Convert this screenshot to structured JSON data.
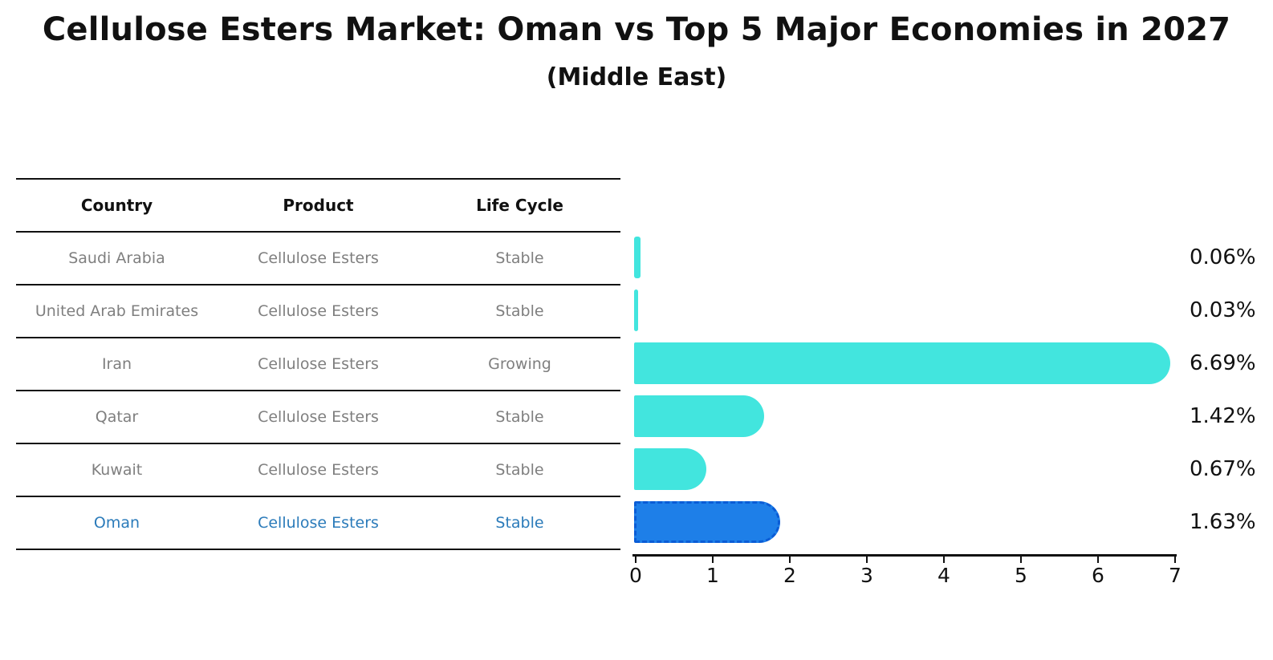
{
  "title": "Cellulose Esters Market: Oman vs Top 5 Major Economies in 2027",
  "subtitle": "(Middle East)",
  "table": {
    "headers": [
      "Country",
      "Product",
      "Life Cycle"
    ],
    "rows": [
      {
        "country": "Saudi Arabia",
        "product": "Cellulose Esters",
        "life_cycle": "Stable",
        "highlight": false
      },
      {
        "country": "United Arab Emirates",
        "product": "Cellulose Esters",
        "life_cycle": "Stable",
        "highlight": false
      },
      {
        "country": "Iran",
        "product": "Cellulose Esters",
        "life_cycle": "Growing",
        "highlight": false
      },
      {
        "country": "Qatar",
        "product": "Cellulose Esters",
        "life_cycle": "Stable",
        "highlight": false
      },
      {
        "country": "Kuwait",
        "product": "Cellulose Esters",
        "life_cycle": "Stable",
        "highlight": false
      },
      {
        "country": "Oman",
        "product": "Cellulose Esters",
        "life_cycle": "Stable",
        "highlight": true
      }
    ]
  },
  "chart_data": {
    "type": "bar",
    "orientation": "horizontal",
    "title": "Cellulose Esters Market: Oman vs Top 5 Major Economies in 2027",
    "subtitle": "(Middle East)",
    "categories": [
      "Saudi Arabia",
      "United Arab Emirates",
      "Iran",
      "Qatar",
      "Kuwait",
      "Oman"
    ],
    "values": [
      0.06,
      0.03,
      6.69,
      1.42,
      0.67,
      1.63
    ],
    "value_labels": [
      "0.06%",
      "0.03%",
      "6.69%",
      "1.42%",
      "0.67%",
      "1.63%"
    ],
    "life_cycle": [
      "Stable",
      "Stable",
      "Growing",
      "Stable",
      "Stable",
      "Stable"
    ],
    "xlim": [
      0,
      7
    ],
    "x_ticks": [
      "0",
      "1",
      "2",
      "3",
      "4",
      "5",
      "6",
      "7"
    ],
    "grid": false,
    "legend": false,
    "highlight_index": 5,
    "bar_color": "#42E5DE",
    "highlight_bar_color": "#1E7FE8",
    "highlight_bar_border": "#0A5CD6"
  },
  "colors": {
    "title": "#111111",
    "table_header_text": "#111111",
    "table_body_text": "#7F7F7F",
    "highlight_text": "#2B7BBA",
    "axis": "#111111",
    "value_label": "#111111"
  }
}
